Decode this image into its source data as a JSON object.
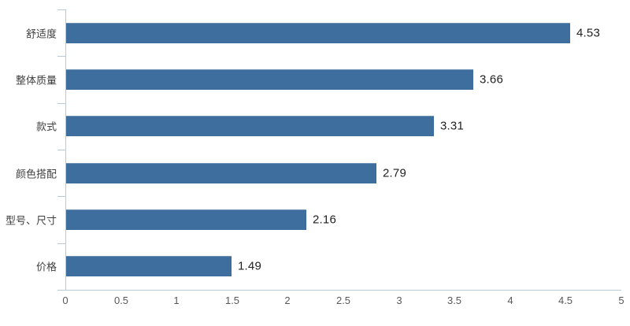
{
  "chart_data": {
    "type": "bar",
    "orientation": "horizontal",
    "title": "",
    "xlabel": "",
    "ylabel": "",
    "categories": [
      "舒适度",
      "整体质量",
      "款式",
      "颜色搭配",
      "型号、尺寸",
      "价格"
    ],
    "values": [
      4.53,
      3.66,
      3.31,
      2.79,
      2.16,
      1.49
    ],
    "value_labels": [
      "4.53",
      "3.66",
      "3.31",
      "2.79",
      "2.16",
      "1.49"
    ],
    "xlim": [
      0,
      5
    ],
    "x_ticks": [
      0,
      0.5,
      1,
      1.5,
      2,
      2.5,
      3,
      3.5,
      4,
      4.5,
      5
    ],
    "x_tick_labels": [
      "0",
      "0.5",
      "1",
      "1.5",
      "2",
      "2.5",
      "3",
      "3.5",
      "4",
      "4.5",
      "5"
    ],
    "grid": false,
    "legend": "none",
    "colors": {
      "bar": "#3e6e9e",
      "axis": "#b7c9db",
      "value_label": "#1f1f1f",
      "category_label": "#3f3f3f",
      "tick_label": "#595959",
      "background": "#ffffff"
    }
  }
}
